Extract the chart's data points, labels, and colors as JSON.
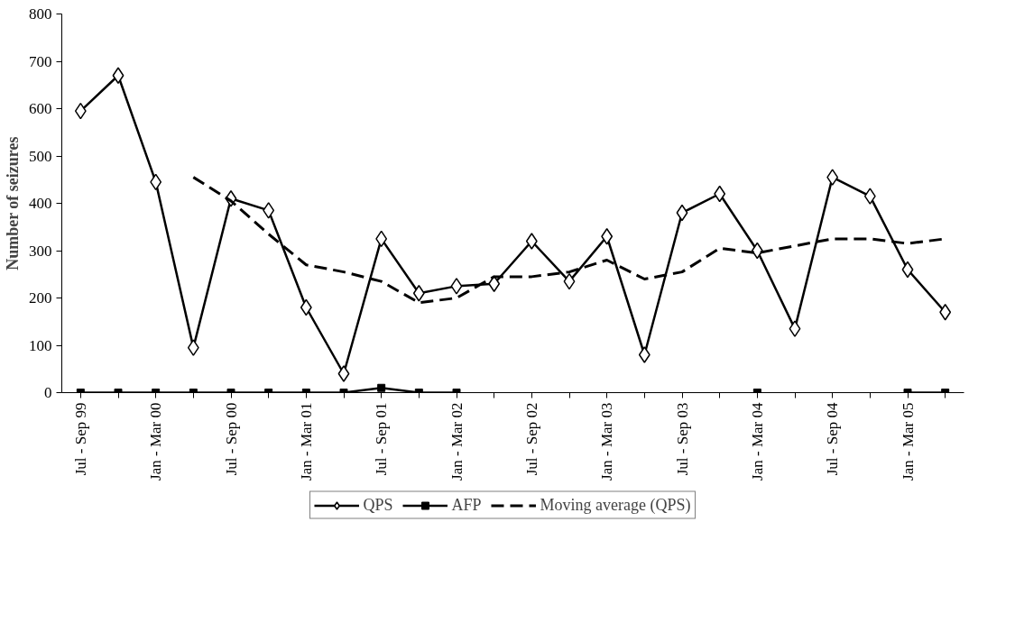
{
  "chart_data": {
    "type": "line",
    "ylabel": "Number of seizures",
    "categories": [
      "Jul - Sep 99",
      null,
      "Jan - Mar 00",
      null,
      "Jul - Sep 00",
      null,
      "Jan - Mar 01",
      null,
      "Jul - Sep 01",
      null,
      "Jan - Mar 02",
      null,
      "Jul - Sep 02",
      null,
      "Jan - Mar 03",
      null,
      "Jul - Sep 03",
      null,
      "Jan - Mar 04",
      null,
      "Jul - Sep 04",
      null,
      "Jan - Mar 05",
      null
    ],
    "series": [
      {
        "name": "QPS",
        "color": "#000000",
        "marker": "diamond",
        "line_style": "solid",
        "values": [
          595,
          670,
          445,
          95,
          410,
          385,
          180,
          40,
          325,
          210,
          225,
          230,
          320,
          235,
          330,
          80,
          380,
          420,
          300,
          135,
          455,
          415,
          260,
          170
        ]
      },
      {
        "name": "AFP",
        "color": "#000000",
        "marker": "square",
        "line_style": "solid",
        "values": [
          0,
          0,
          0,
          0,
          0,
          0,
          0,
          0,
          10,
          0,
          0,
          null,
          null,
          null,
          null,
          null,
          null,
          null,
          0,
          null,
          null,
          null,
          0,
          0
        ]
      },
      {
        "name": "Moving average (QPS)",
        "color": "#000000",
        "marker": "none",
        "line_style": "dashed",
        "values": [
          null,
          null,
          null,
          455,
          405,
          335,
          270,
          255,
          235,
          190,
          200,
          245,
          245,
          255,
          280,
          240,
          255,
          305,
          295,
          310,
          325,
          325,
          315,
          325
        ]
      }
    ],
    "ylim": [
      0,
      800
    ],
    "yticks": [
      0,
      100,
      200,
      300,
      400,
      500,
      600,
      700,
      800
    ],
    "grid": false,
    "legend": "bottom"
  }
}
